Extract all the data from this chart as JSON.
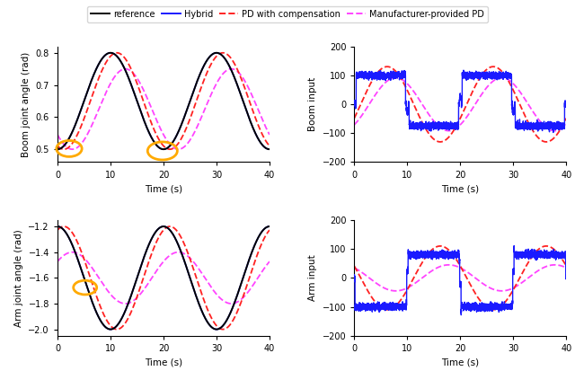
{
  "legend_labels": [
    "reference",
    "Hybrid",
    "PD with compensation",
    "Manufacturer-provided PD"
  ],
  "ref_color": "#000000",
  "hybrid_color": "#1a1aff",
  "pd_comp_color": "#ff2222",
  "pd_mfr_color": "#ff44ff",
  "boom_ylabel": "Boom joint angle (rad)",
  "arm_ylabel": "Arm joint angle (rad)",
  "boom_input_ylabel": "Boom input",
  "arm_input_ylabel": "Arm input",
  "xlabel": "Time (s)",
  "xticks": [
    0,
    10,
    20,
    30,
    40
  ],
  "boom_ylim": [
    0.46,
    0.82
  ],
  "boom_yticks": [
    0.5,
    0.6,
    0.7,
    0.8
  ],
  "arm_ylim": [
    -2.05,
    -1.15
  ],
  "arm_yticks": [
    -2.0,
    -1.8,
    -1.6,
    -1.4,
    -1.2
  ],
  "input_ylim": [
    -200,
    200
  ],
  "input_yticks": [
    -200,
    -100,
    0,
    100,
    200
  ],
  "circle_color": "#ffaa00"
}
